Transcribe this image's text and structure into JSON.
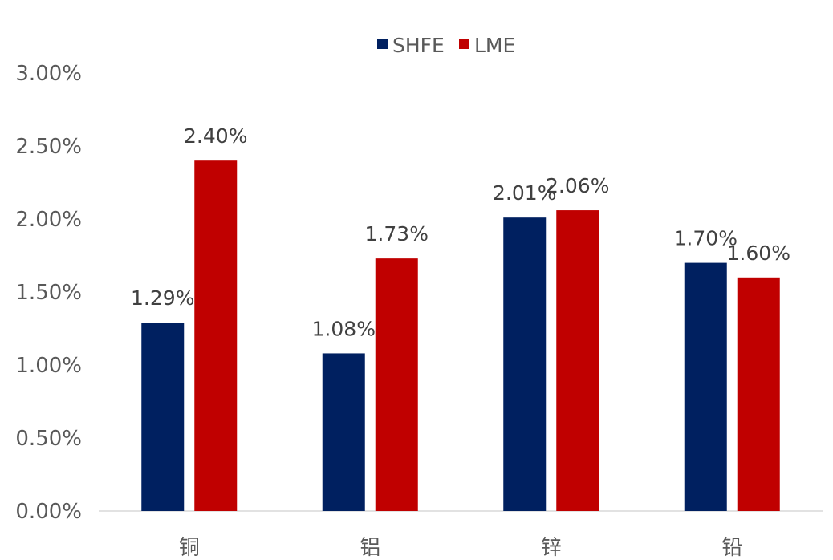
{
  "chart_data": {
    "type": "bar",
    "categories": [
      "铜",
      "铝",
      "锌",
      "铅"
    ],
    "series": [
      {
        "name": "SHFE",
        "values": [
          1.29,
          1.08,
          2.01,
          1.7
        ],
        "labels": [
          "1.29%",
          "1.08%",
          "2.01%",
          "1.70%"
        ],
        "color": "#002060"
      },
      {
        "name": "LME",
        "values": [
          2.4,
          1.73,
          2.06,
          1.6
        ],
        "labels": [
          "2.40%",
          "1.73%",
          "2.06%",
          "1.60%"
        ],
        "color": "#C00000"
      }
    ],
    "yticks": [
      0,
      0.5,
      1.0,
      1.5,
      2.0,
      2.5,
      3.0
    ],
    "ytick_labels": [
      "0.00%",
      "0.50%",
      "1.00%",
      "1.50%",
      "2.00%",
      "2.50%",
      "3.00%"
    ],
    "ylim": [
      0,
      3.0
    ],
    "legend": "top-center",
    "grid": false
  }
}
